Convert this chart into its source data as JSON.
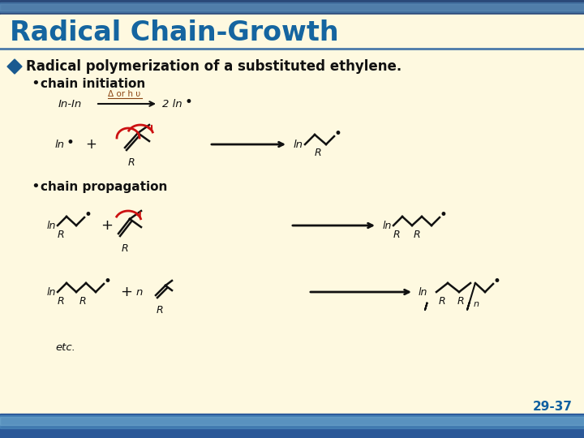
{
  "title": "Radical Chain-Growth",
  "title_color": "#1565a0",
  "bg_color": "#fef9e0",
  "header_stripe_color": "#3a6090",
  "header_stripe2_color": "#6090b8",
  "footer_stripe_color": "#3060a0",
  "bullet1_text": "Radical polymerization of a substituted ethylene.",
  "sub1_text": "chain initiation",
  "sub2_text": "chain propagation",
  "etc_text": "etc.",
  "page_num": "29-37",
  "diamond_color": "#1a5a90",
  "red_color": "#cc1111",
  "black": "#111111",
  "teal": "#007070",
  "blue_text": "#1060a0"
}
